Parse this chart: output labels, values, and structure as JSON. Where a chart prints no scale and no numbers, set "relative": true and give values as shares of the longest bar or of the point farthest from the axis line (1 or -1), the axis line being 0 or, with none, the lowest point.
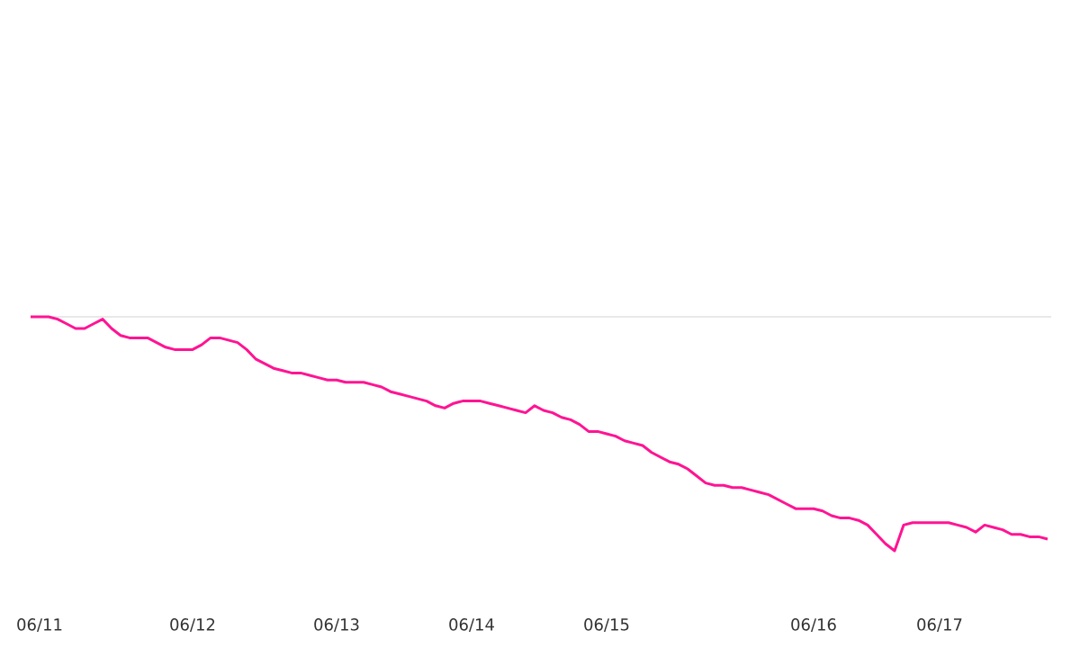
{
  "chart_data": {
    "type": "line",
    "relative": true,
    "marker": "none",
    "line_style": "solid",
    "categories": [
      null,
      "06/11",
      null,
      null,
      null,
      null,
      null,
      null,
      null,
      null,
      null,
      null,
      null,
      null,
      null,
      null,
      null,
      null,
      "06/12",
      null,
      null,
      null,
      null,
      null,
      null,
      null,
      null,
      null,
      null,
      null,
      null,
      null,
      null,
      null,
      "06/13",
      null,
      null,
      null,
      null,
      null,
      null,
      null,
      null,
      null,
      null,
      null,
      null,
      null,
      null,
      "06/14",
      null,
      null,
      null,
      null,
      null,
      null,
      null,
      null,
      null,
      null,
      null,
      null,
      null,
      null,
      "06/15",
      null,
      null,
      null,
      null,
      null,
      null,
      null,
      null,
      null,
      null,
      null,
      null,
      null,
      null,
      null,
      null,
      null,
      null,
      null,
      null,
      null,
      null,
      "06/16",
      null,
      null,
      null,
      null,
      null,
      null,
      null,
      null,
      null,
      null,
      null,
      null,
      null,
      "06/17",
      null,
      null,
      null,
      null,
      null,
      null,
      null,
      null,
      null,
      null,
      null,
      null
    ],
    "series": [
      {
        "color": "#ff1493",
        "values": [
          1.0,
          1.0,
          1.0,
          0.99,
          0.97,
          0.95,
          0.95,
          0.97,
          0.99,
          0.95,
          0.92,
          0.91,
          0.91,
          0.91,
          0.89,
          0.87,
          0.86,
          0.86,
          0.86,
          0.88,
          0.91,
          0.91,
          0.9,
          0.89,
          0.86,
          0.82,
          0.8,
          0.78,
          0.77,
          0.76,
          0.76,
          0.75,
          0.74,
          0.73,
          0.73,
          0.72,
          0.72,
          0.72,
          0.71,
          0.7,
          0.68,
          0.67,
          0.66,
          0.65,
          0.64,
          0.62,
          0.61,
          0.63,
          0.64,
          0.64,
          0.64,
          0.63,
          0.62,
          0.61,
          0.6,
          0.59,
          0.62,
          0.6,
          0.59,
          0.57,
          0.56,
          0.54,
          0.51,
          0.51,
          0.5,
          0.49,
          0.47,
          0.46,
          0.45,
          0.42,
          0.4,
          0.38,
          0.37,
          0.35,
          0.32,
          0.29,
          0.28,
          0.28,
          0.27,
          0.27,
          0.26,
          0.25,
          0.24,
          0.22,
          0.2,
          0.18,
          0.18,
          0.18,
          0.17,
          0.15,
          0.14,
          0.14,
          0.13,
          0.11,
          0.07,
          0.03,
          0.0,
          0.11,
          0.12,
          0.12,
          0.12,
          0.12,
          0.12,
          0.11,
          0.1,
          0.08,
          0.11,
          0.1,
          0.09,
          0.07,
          0.07,
          0.06,
          0.06,
          0.05
        ]
      }
    ],
    "ref_lines": [
      {
        "axis": "y",
        "value": 1,
        "color": "#e0e0e0"
      }
    ]
  }
}
